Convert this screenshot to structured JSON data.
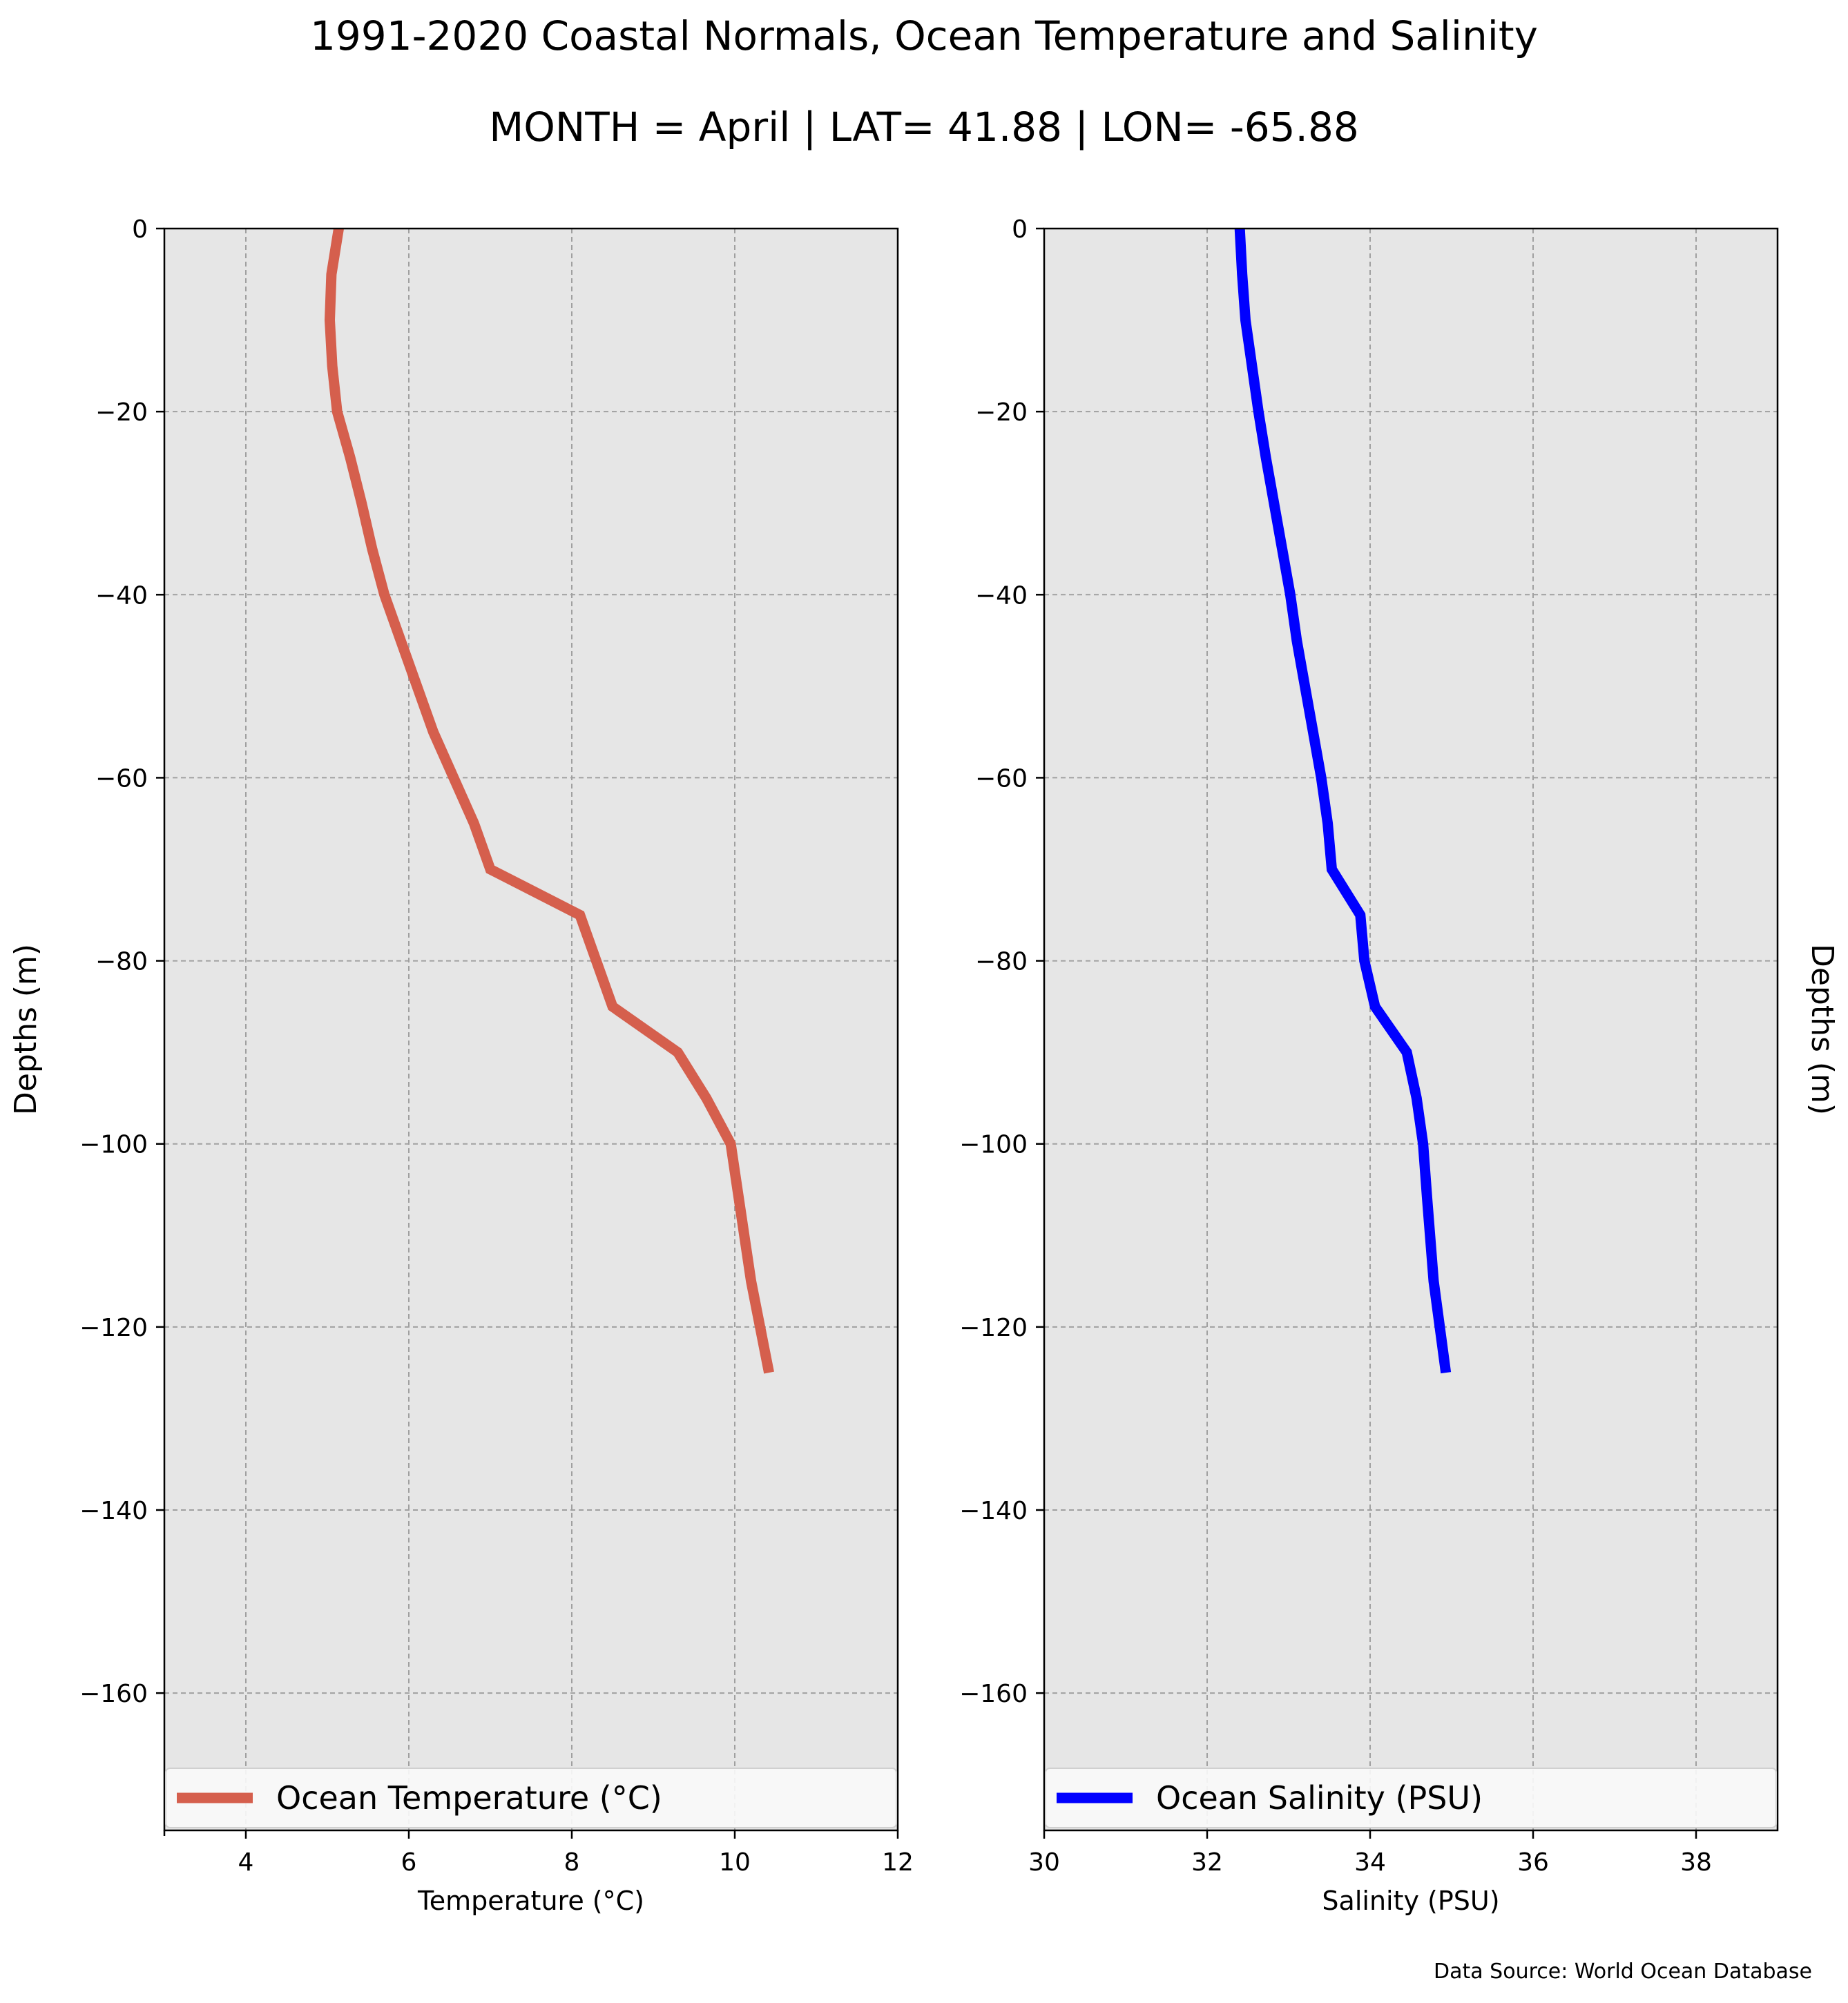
{
  "title": "1991-2020 Coastal Normals, Ocean Temperature and Salinity",
  "subtitle": "MONTH = April | LAT= 41.88 | LON= -65.88",
  "source": "Data Source: World Ocean Database",
  "colors": {
    "background": "#e6e6e6",
    "grid": "#a0a0a0",
    "temperature": "#d55f4d",
    "salinity": "#0000ff"
  },
  "chart_data": [
    {
      "type": "line",
      "xlabel": "Temperature ($^\\circ$C)",
      "ylabel": "Depths (m)",
      "xlim": [
        3,
        12
      ],
      "ylim": [
        -175,
        0
      ],
      "xticks": [
        4,
        6,
        8,
        10,
        12
      ],
      "yticks": [
        0,
        -20,
        -40,
        -60,
        -80,
        -100,
        -120,
        -140,
        -160
      ],
      "tick_labels_x": [
        "4",
        "6",
        "8",
        "10",
        "12"
      ],
      "tick_labels_y": [
        "0",
        "−20",
        "−40",
        "−60",
        "−80",
        "−100",
        "−120",
        "−140",
        "−160"
      ],
      "grid": true,
      "legend_position": "bottom",
      "series": [
        {
          "name": "Ocean Temperature ($^\\circ$C)",
          "x": [
            5.14,
            5.05,
            5.03,
            5.06,
            5.12,
            5.28,
            5.42,
            5.55,
            5.7,
            5.9,
            6.1,
            6.3,
            6.55,
            6.8,
            7.0,
            8.1,
            8.3,
            8.5,
            9.3,
            9.65,
            9.95,
            10.05,
            10.2,
            10.42
          ],
          "y": [
            0,
            -5,
            -10,
            -15,
            -20,
            -25,
            -30,
            -35,
            -40,
            -45,
            -50,
            -55,
            -60,
            -65,
            -70,
            -75,
            -80,
            -85,
            -90,
            -95,
            -100,
            -106,
            -115,
            -125
          ]
        }
      ]
    },
    {
      "type": "line",
      "xlabel": "Salinity (PSU)",
      "ylabel": "Depths (m)",
      "xlim": [
        30,
        39
      ],
      "ylim": [
        -175,
        0
      ],
      "xticks": [
        30,
        32,
        34,
        36,
        38
      ],
      "yticks": [
        0,
        -20,
        -40,
        -60,
        -80,
        -100,
        -120,
        -140,
        -160
      ],
      "tick_labels_x": [
        "30",
        "32",
        "34",
        "36",
        "38"
      ],
      "tick_labels_y": [
        "0",
        "−20",
        "−40",
        "−60",
        "−80",
        "−100",
        "−120",
        "−140",
        "−160"
      ],
      "grid": true,
      "legend_position": "bottom",
      "series": [
        {
          "name": "Ocean Salinity (PSU)",
          "x": [
            32.4,
            32.43,
            32.47,
            32.55,
            32.63,
            32.72,
            32.82,
            32.92,
            33.02,
            33.1,
            33.2,
            33.3,
            33.4,
            33.48,
            33.53,
            33.88,
            33.93,
            34.06,
            34.45,
            34.57,
            34.65,
            34.7,
            34.78,
            34.93
          ],
          "y": [
            0,
            -5,
            -10,
            -15,
            -20,
            -25,
            -30,
            -35,
            -40,
            -45,
            -50,
            -55,
            -60,
            -65,
            -70,
            -75,
            -80,
            -85,
            -90,
            -95,
            -100,
            -106,
            -115,
            -125
          ]
        }
      ]
    }
  ]
}
